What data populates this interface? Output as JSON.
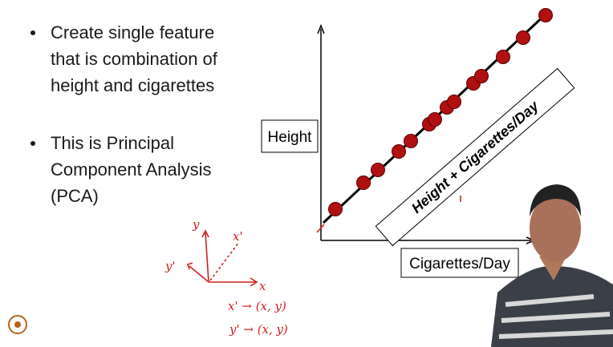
{
  "slide": {
    "bullets": [
      [
        "Create single feature",
        "that is combination of",
        "height and cigarettes"
      ],
      [
        "This is Principal",
        "Component Analysis",
        "(PCA)"
      ]
    ],
    "diagram": {
      "y_axis_label": "Height",
      "x_axis_label": "Cigarettes/Day",
      "combined_axis_label": "Height + Cigarettes/Day"
    },
    "handwriting": {
      "axis_y": "y",
      "axis_x": "x",
      "axis_y_prime": "y'",
      "axis_x_prime": "x'",
      "note_1": "x' → (x, y)",
      "note_2": "y' → (x, y)"
    }
  }
}
